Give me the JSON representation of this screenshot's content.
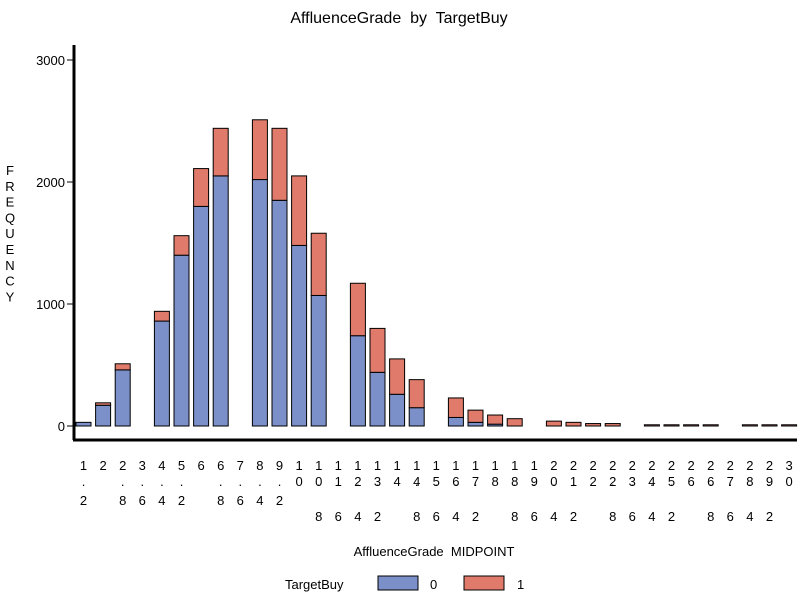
{
  "chart_data": {
    "type": "bar",
    "stacked": true,
    "title": "AffluenceGrade  by  TargetBuy",
    "xlabel": "AffluenceGrade  MIDPOINT",
    "ylabel": "FREQUENCY",
    "ylim": [
      0,
      3100
    ],
    "yticks": [
      0,
      1000,
      2000,
      3000
    ],
    "grid": false,
    "legend_placement": "bottom",
    "legend_title": "TargetBuy",
    "categories": [
      "1.2",
      "2",
      "2.8",
      "3.6",
      "4.4",
      "5.2",
      "6",
      "6.8",
      "7.6",
      "8.4",
      "9.2",
      "10",
      "10.8",
      "11.6",
      "12.4",
      "13.2",
      "14",
      "14.8",
      "15.6",
      "16.4",
      "17.2",
      "18",
      "18.8",
      "19.6",
      "20.4",
      "21.2",
      "22",
      "22.8",
      "23.6",
      "24.4",
      "25.2",
      "26",
      "26.8",
      "27.6",
      "28.4",
      "29.2",
      "30"
    ],
    "series": [
      {
        "name": "0",
        "color": "#7b90c9",
        "values": [
          30,
          170,
          460,
          0,
          860,
          1400,
          1800,
          2050,
          0,
          2020,
          1850,
          1480,
          1070,
          0,
          740,
          440,
          260,
          150,
          0,
          70,
          30,
          15,
          0,
          0,
          0,
          0,
          0,
          0,
          0,
          0,
          0,
          0,
          0,
          0,
          0,
          0,
          0
        ]
      },
      {
        "name": "1",
        "color": "#e07b6b",
        "values": [
          0,
          20,
          50,
          0,
          80,
          160,
          310,
          390,
          0,
          490,
          590,
          570,
          510,
          0,
          430,
          360,
          290,
          230,
          0,
          160,
          100,
          75,
          60,
          0,
          40,
          30,
          20,
          20,
          0,
          10,
          10,
          10,
          10,
          0,
          10,
          10,
          10
        ]
      }
    ]
  }
}
